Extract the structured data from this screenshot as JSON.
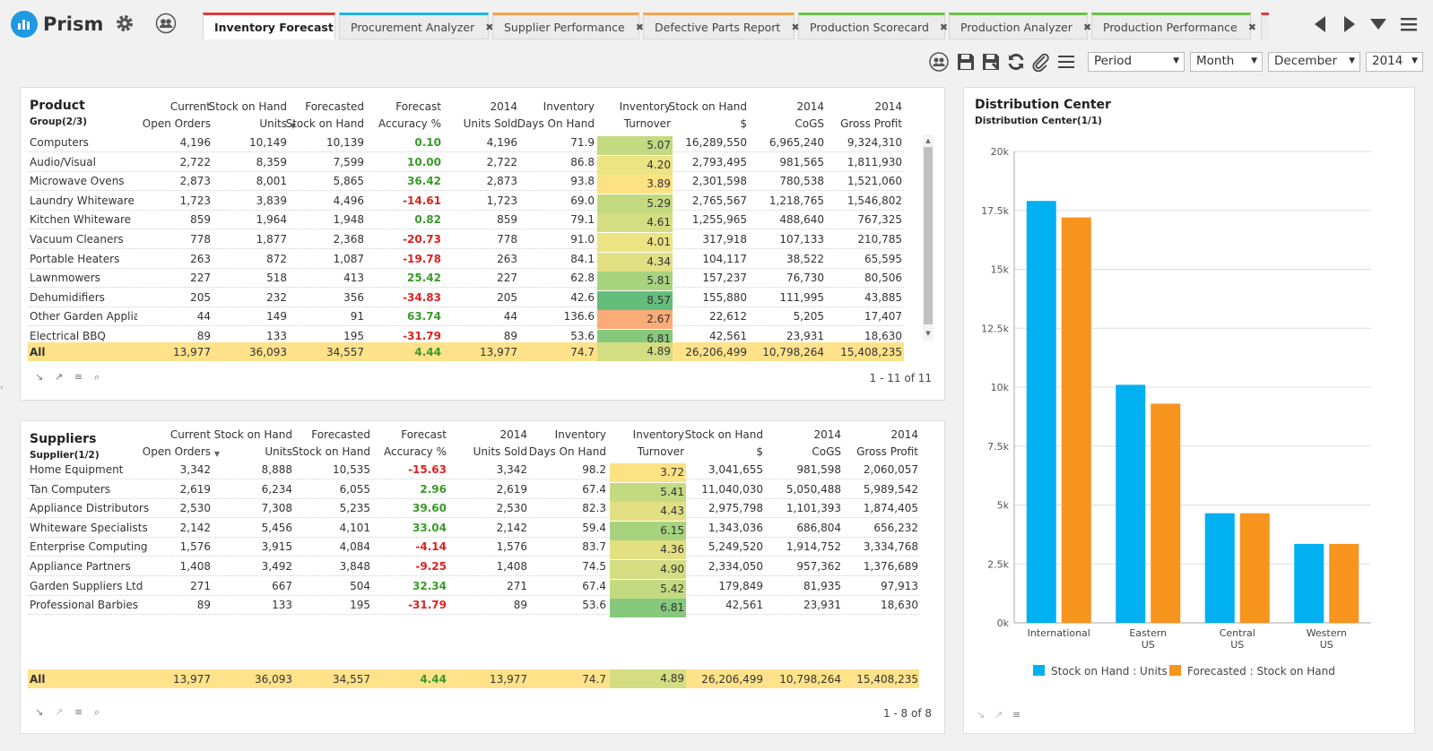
{
  "app": {
    "name": "Prism"
  },
  "tabs": [
    {
      "label": "Inventory Forecast",
      "color": "#e03c3c",
      "active": true,
      "width": 148
    },
    {
      "label": "Procurement Analyzer",
      "color": "#1eb4e8",
      "active": false,
      "width": 167
    },
    {
      "label": "Supplier Performance",
      "color": "#f5a14a",
      "active": false,
      "width": 164
    },
    {
      "label": "Defective Parts Report",
      "color": "#f5a14a",
      "active": false,
      "width": 169
    },
    {
      "label": "Production Scorecard",
      "color": "#6cc04a",
      "active": false,
      "width": 164
    },
    {
      "label": "Production Analyzer",
      "color": "#6cc04a",
      "active": false,
      "width": 155
    },
    {
      "label": "Production Performance",
      "color": "#6cc04a",
      "active": false,
      "width": 178
    }
  ],
  "filters": {
    "period": "Period",
    "month": "Month",
    "monthValue": "December",
    "year": "2014"
  },
  "product": {
    "title": "Product",
    "subtitle": "Group(2/3)",
    "headers": [
      [
        "Current",
        "Open Orders"
      ],
      [
        "Stock on Hand",
        "Units"
      ],
      [
        "Forecasted",
        "Stock on Hand"
      ],
      [
        "Forecast",
        "Accuracy %"
      ],
      [
        "2014",
        "Units Sold"
      ],
      [
        "Inventory",
        "Days On Hand"
      ],
      [
        "Inventory",
        "Turnover"
      ],
      [
        "Stock on Hand",
        "$"
      ],
      [
        "2014",
        "CoGS"
      ],
      [
        "2014",
        "Gross Profit"
      ]
    ],
    "rows": [
      [
        "Computers",
        "4,196",
        "10,149",
        "10,139",
        "0.10",
        "4,196",
        "71.9",
        "5.07",
        "16,289,550",
        "6,965,240",
        "9,324,310"
      ],
      [
        "Audio/Visual",
        "2,722",
        "8,359",
        "7,599",
        "10.00",
        "2,722",
        "86.8",
        "4.20",
        "2,793,495",
        "981,565",
        "1,811,930"
      ],
      [
        "Microwave Ovens",
        "2,873",
        "8,001",
        "5,865",
        "36.42",
        "2,873",
        "93.8",
        "3.89",
        "2,301,598",
        "780,538",
        "1,521,060"
      ],
      [
        "Laundry Whiteware",
        "1,723",
        "3,839",
        "4,496",
        "-14.61",
        "1,723",
        "69.0",
        "5.29",
        "2,765,567",
        "1,218,765",
        "1,546,802"
      ],
      [
        "Kitchen Whiteware",
        "859",
        "1,964",
        "1,948",
        "0.82",
        "859",
        "79.1",
        "4.61",
        "1,255,965",
        "488,640",
        "767,325"
      ],
      [
        "Vacuum Cleaners",
        "778",
        "1,877",
        "2,368",
        "-20.73",
        "778",
        "91.0",
        "4.01",
        "317,918",
        "107,133",
        "210,785"
      ],
      [
        "Portable Heaters",
        "263",
        "872",
        "1,087",
        "-19.78",
        "263",
        "84.1",
        "4.34",
        "104,117",
        "38,522",
        "65,595"
      ],
      [
        "Lawnmowers",
        "227",
        "518",
        "413",
        "25.42",
        "227",
        "62.8",
        "5.81",
        "157,237",
        "76,730",
        "80,506"
      ],
      [
        "Dehumidifiers",
        "205",
        "232",
        "356",
        "-34.83",
        "205",
        "42.6",
        "8.57",
        "155,880",
        "111,995",
        "43,885"
      ],
      [
        "Other Garden Applianc",
        "44",
        "149",
        "91",
        "63.74",
        "44",
        "136.6",
        "2.67",
        "22,612",
        "5,205",
        "17,407"
      ],
      [
        "Electrical BBQ",
        "89",
        "133",
        "195",
        "-31.79",
        "89",
        "53.6",
        "6.81",
        "42,561",
        "23,931",
        "18,630"
      ]
    ],
    "total": [
      "All",
      "13,977",
      "36,093",
      "34,557",
      "4.44",
      "13,977",
      "74.7",
      "4.89",
      "26,206,499",
      "10,798,264",
      "15,408,235"
    ],
    "pager": "1 - 11 of 11"
  },
  "suppliers": {
    "title": "Suppliers",
    "subtitle": "Supplier(1/2)",
    "headers": [
      [
        "Current",
        "Open Orders"
      ],
      [
        "Stock on Hand",
        "Units"
      ],
      [
        "Forecasted",
        "Stock on Hand"
      ],
      [
        "Forecast",
        "Accuracy %"
      ],
      [
        "2014",
        "Units Sold"
      ],
      [
        "Inventory",
        "Days On Hand"
      ],
      [
        "Inventory",
        "Turnover"
      ],
      [
        "Stock on Hand",
        "$"
      ],
      [
        "2014",
        "CoGS"
      ],
      [
        "2014",
        "Gross Profit"
      ]
    ],
    "rows": [
      [
        "Home Equipment",
        "3,342",
        "8,888",
        "10,535",
        "-15.63",
        "3,342",
        "98.2",
        "3.72",
        "3,041,655",
        "981,598",
        "2,060,057"
      ],
      [
        "Tan Computers",
        "2,619",
        "6,234",
        "6,055",
        "2.96",
        "2,619",
        "67.4",
        "5.41",
        "11,040,030",
        "5,050,488",
        "5,989,542"
      ],
      [
        "Appliance Distributors",
        "2,530",
        "7,308",
        "5,235",
        "39.60",
        "2,530",
        "82.3",
        "4.43",
        "2,975,798",
        "1,101,393",
        "1,874,405"
      ],
      [
        "Whiteware Specialists",
        "2,142",
        "5,456",
        "4,101",
        "33.04",
        "2,142",
        "59.4",
        "6.15",
        "1,343,036",
        "686,804",
        "656,232"
      ],
      [
        "Enterprise Computing",
        "1,576",
        "3,915",
        "4,084",
        "-4.14",
        "1,576",
        "83.7",
        "4.36",
        "5,249,520",
        "1,914,752",
        "3,334,768"
      ],
      [
        "Appliance Partners",
        "1,408",
        "3,492",
        "3,848",
        "-9.25",
        "1,408",
        "74.5",
        "4.90",
        "2,334,050",
        "957,362",
        "1,376,689"
      ],
      [
        "Garden Suppliers Ltd",
        "271",
        "667",
        "504",
        "32.34",
        "271",
        "67.4",
        "5.42",
        "179,849",
        "81,935",
        "97,913"
      ],
      [
        "Professional Barbies",
        "89",
        "133",
        "195",
        "-31.79",
        "89",
        "53.6",
        "6.81",
        "42,561",
        "23,931",
        "18,630"
      ]
    ],
    "total": [
      "All",
      "13,977",
      "36,093",
      "34,557",
      "4.44",
      "13,977",
      "74.7",
      "4.89",
      "26,206,499",
      "10,798,264",
      "15,408,235"
    ],
    "pager": "1 - 8 of 8"
  },
  "chart": {
    "title": "Distribution Center",
    "subtitle": "Distribution Center(1/1)"
  },
  "chart_data": {
    "type": "bar",
    "categories": [
      [
        "International"
      ],
      [
        "Eastern",
        "US"
      ],
      [
        "Central",
        "US"
      ],
      [
        "Western",
        "US"
      ]
    ],
    "series": [
      {
        "name": "Stock on Hand : Units",
        "color": "#00b0f0",
        "values": [
          17900,
          10100,
          4650,
          3350
        ]
      },
      {
        "name": "Forecasted : Stock on Hand",
        "color": "#f7941d",
        "values": [
          17200,
          9300,
          4650,
          3350
        ]
      }
    ],
    "yticks": [
      "0k",
      "2.5k",
      "5k",
      "7.5k",
      "10k",
      "12.5k",
      "15k",
      "17.5k",
      "20k"
    ],
    "ylim": [
      0,
      20000
    ],
    "legend": "bottom"
  }
}
